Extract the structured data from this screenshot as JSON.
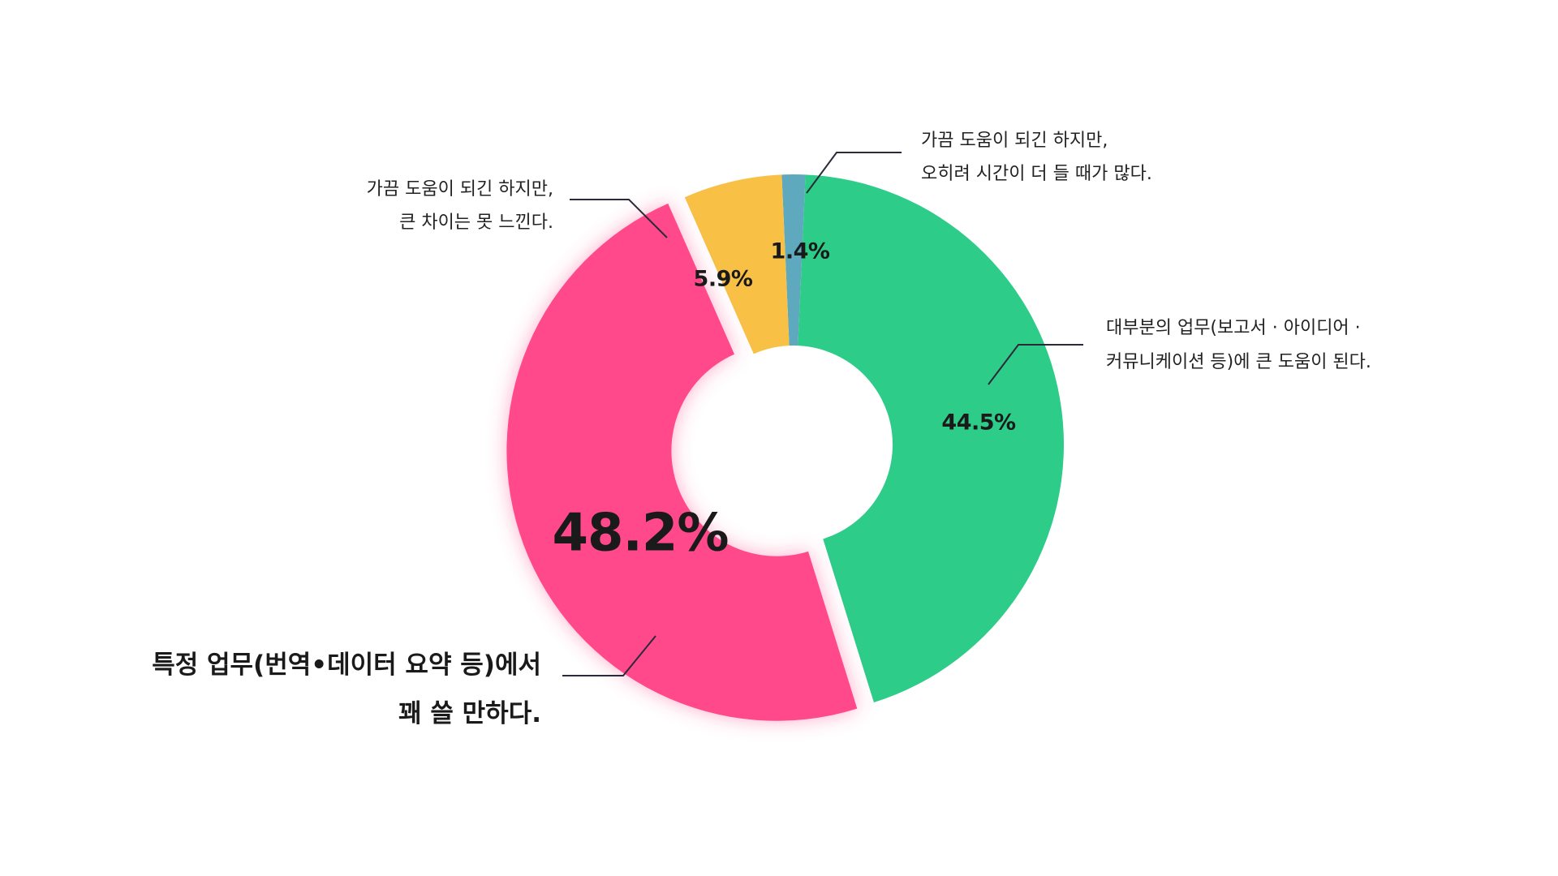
{
  "chart_data": {
    "type": "pie",
    "variant": "donut",
    "title": "",
    "exploded_slice": "특정 업무(번역•데이터 요약 등)에서 꽤 쓸 만하다.",
    "slices": [
      {
        "label_line1": "가끔 도움이 되긴 하지만,",
        "label_line2": "오히려 시간이 더 들 때가 많다.",
        "value": 1.4,
        "display": "1.4%",
        "color": "#5EA9BE"
      },
      {
        "label_line1": "대부분의 업무(보고서 · 아이디어 ·",
        "label_line2": "커뮤니케이션 등)에 큰 도움이 된다.",
        "value": 44.5,
        "display": "44.5%",
        "color": "#2ECC89"
      },
      {
        "label_line1": "특정 업무(번역•데이터 요약 등)에서",
        "label_line2": "꽤 쓸 만하다.",
        "value": 48.2,
        "display": "48.2%",
        "color": "#FF4A8A"
      },
      {
        "label_line1": "가끔 도움이 되긴 하지만,",
        "label_line2": "큰 차이는 못 느낀다.",
        "value": 5.9,
        "display": "5.9%",
        "color": "#F8C146"
      }
    ],
    "legend": "none (callout labels with leader lines)"
  }
}
